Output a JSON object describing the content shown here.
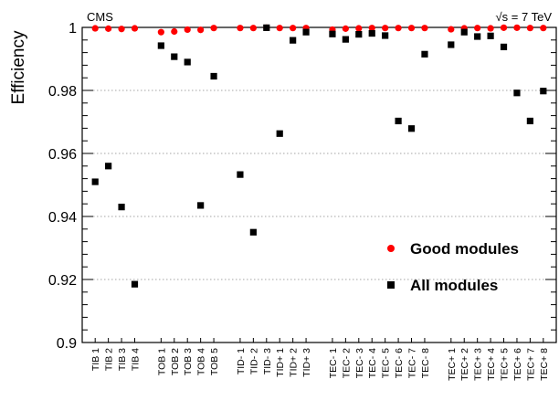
{
  "header": {
    "experiment": "CMS",
    "energy_sqrt": "√s",
    "energy_rest": " = 7 TeV"
  },
  "chart_data": {
    "type": "scatter",
    "title": "",
    "xlabel": "",
    "ylabel": "Efficiency",
    "ylim": [
      0.9,
      1.0
    ],
    "yticks": [
      "0.9",
      "0.92",
      "0.94",
      "0.96",
      "0.98",
      "1"
    ],
    "grid": "horizontal dotted at major ticks",
    "legend_position": "bottom-right",
    "categories": [
      {
        "label": "TIB 1",
        "pos": 1
      },
      {
        "label": "TIB 2",
        "pos": 2
      },
      {
        "label": "TIB 3",
        "pos": 3
      },
      {
        "label": "TIB 4",
        "pos": 4
      },
      {
        "label": "TOB 1",
        "pos": 6
      },
      {
        "label": "TOB 2",
        "pos": 7
      },
      {
        "label": "TOB 3",
        "pos": 8
      },
      {
        "label": "TOB 4",
        "pos": 9
      },
      {
        "label": "TOB 5",
        "pos": 10
      },
      {
        "label": "TID- 1",
        "pos": 12
      },
      {
        "label": "TID- 2",
        "pos": 13
      },
      {
        "label": "TID- 3",
        "pos": 14
      },
      {
        "label": "TID+ 1",
        "pos": 15
      },
      {
        "label": "TID+ 2",
        "pos": 16
      },
      {
        "label": "TID+ 3",
        "pos": 17
      },
      {
        "label": "TEC- 1",
        "pos": 19
      },
      {
        "label": "TEC- 2",
        "pos": 20
      },
      {
        "label": "TEC- 3",
        "pos": 21
      },
      {
        "label": "TEC- 4",
        "pos": 22
      },
      {
        "label": "TEC- 5",
        "pos": 23
      },
      {
        "label": "TEC- 6",
        "pos": 24
      },
      {
        "label": "TEC- 7",
        "pos": 25
      },
      {
        "label": "TEC- 8",
        "pos": 26
      },
      {
        "label": "TEC+ 1",
        "pos": 28
      },
      {
        "label": "TEC+ 2",
        "pos": 29
      },
      {
        "label": "TEC+ 3",
        "pos": 30
      },
      {
        "label": "TEC+ 4",
        "pos": 31
      },
      {
        "label": "TEC+ 5",
        "pos": 32
      },
      {
        "label": "TEC+ 6",
        "pos": 33
      },
      {
        "label": "TEC+ 7",
        "pos": 34
      },
      {
        "label": "TEC+ 8",
        "pos": 35
      }
    ],
    "series": [
      {
        "name": "Good modules",
        "marker": "circle",
        "color": "#ff0000",
        "values": [
          0.9997,
          0.9996,
          0.9995,
          0.9997,
          0.9985,
          0.9987,
          0.9993,
          0.9992,
          0.9998,
          0.9998,
          0.9998,
          0.9999,
          0.9998,
          0.9998,
          0.9998,
          0.9993,
          0.9996,
          0.9997,
          0.9998,
          0.9998,
          0.9998,
          0.9998,
          0.9998,
          0.9994,
          0.9997,
          0.9998,
          0.9997,
          0.9999,
          0.9999,
          0.9998,
          0.9998
        ]
      },
      {
        "name": "All modules",
        "marker": "square",
        "color": "#000000",
        "values": [
          0.951,
          0.956,
          0.943,
          0.9185,
          0.9942,
          0.9907,
          0.989,
          0.9435,
          0.9845,
          0.9533,
          0.935,
          0.9999,
          0.9663,
          0.9959,
          0.9985,
          0.9979,
          0.9962,
          0.9978,
          0.9981,
          0.9974,
          0.9703,
          0.9679,
          0.9915,
          0.9945,
          0.9985,
          0.9971,
          0.9973,
          0.9938,
          0.9792,
          0.9703,
          0.9798
        ]
      }
    ]
  }
}
